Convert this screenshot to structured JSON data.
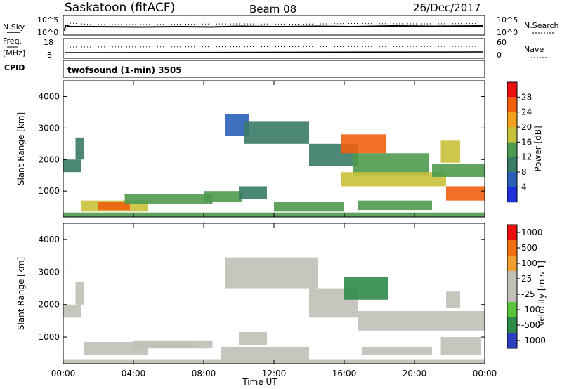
{
  "header": {
    "station": "Saskatoon (fitACF)",
    "beam": "Beam 08",
    "date": "26/Dec/2017"
  },
  "noise_panel": {
    "left_label": "N.Sky",
    "right_label": "N.Search",
    "tick_top": "10^5",
    "tick_bottom": "10^0"
  },
  "freq_panel": {
    "left_label_1": "Freq.",
    "left_label_2": "[MHz]",
    "left_ticks": [
      "18",
      "8"
    ],
    "right_label": "Nave",
    "right_ticks": [
      "60",
      "0"
    ]
  },
  "cpid_panel": {
    "label": "CPID",
    "program": "twofsound (1-min) 3505"
  },
  "colors": {
    "power_scale": [
      "#1f2fd9",
      "#2a5fb8",
      "#3a7a66",
      "#4f9a4f",
      "#c9c03a",
      "#f0a020",
      "#f06010",
      "#e81010"
    ],
    "velocity_scale": [
      "#2b3fc0",
      "#2f8a4a",
      "#5cc43c",
      "#c0c0b8",
      "#c0c0b8",
      "#f0a030",
      "#f07010",
      "#e81010"
    ]
  },
  "chart_data": [
    {
      "type": "heatmap",
      "title": "",
      "xlabel": "",
      "ylabel": "Slant Range [km]",
      "x_ticks": [
        "00:00",
        "04:00",
        "08:00",
        "12:00",
        "16:00",
        "20:00",
        "00:00"
      ],
      "y_ticks": [
        "1000",
        "2000",
        "3000",
        "4000"
      ],
      "ylim": [
        180,
        4500
      ],
      "colorbar": {
        "label": "Power [dB]",
        "ticks": [
          "28",
          "24",
          "20",
          "16",
          "12",
          "8",
          "4"
        ],
        "range": [
          0,
          32
        ]
      },
      "patches": [
        {
          "t0": 0.0,
          "t1": 1.0,
          "r0": 1600,
          "r1": 2000,
          "v": 10
        },
        {
          "t0": 0.7,
          "t1": 1.2,
          "r0": 2000,
          "r1": 2700,
          "v": 8
        },
        {
          "t0": 1.0,
          "t1": 4.8,
          "r0": 350,
          "r1": 700,
          "v": 18
        },
        {
          "t0": 2.0,
          "t1": 3.8,
          "r0": 400,
          "r1": 650,
          "v": 26
        },
        {
          "t0": 3.5,
          "t1": 8.5,
          "r0": 600,
          "r1": 900,
          "v": 12
        },
        {
          "t0": 8.0,
          "t1": 10.2,
          "r0": 650,
          "r1": 1000,
          "v": 14
        },
        {
          "t0": 9.2,
          "t1": 10.6,
          "r0": 2750,
          "r1": 3450,
          "v": 6
        },
        {
          "t0": 10.3,
          "t1": 14.0,
          "r0": 2500,
          "r1": 3200,
          "v": 9
        },
        {
          "t0": 10.0,
          "t1": 11.6,
          "r0": 750,
          "r1": 1150,
          "v": 10
        },
        {
          "t0": 12.0,
          "t1": 16.0,
          "r0": 350,
          "r1": 650,
          "v": 14
        },
        {
          "t0": 14.0,
          "t1": 16.8,
          "r0": 1800,
          "r1": 2500,
          "v": 9
        },
        {
          "t0": 15.8,
          "t1": 18.4,
          "r0": 2200,
          "r1": 2800,
          "v": 26
        },
        {
          "t0": 16.5,
          "t1": 20.8,
          "r0": 1500,
          "r1": 2200,
          "v": 14
        },
        {
          "t0": 15.8,
          "t1": 21.8,
          "r0": 1150,
          "r1": 1600,
          "v": 18
        },
        {
          "t0": 16.8,
          "t1": 21.0,
          "r0": 400,
          "r1": 700,
          "v": 12
        },
        {
          "t0": 21.5,
          "t1": 22.6,
          "r0": 1900,
          "r1": 2600,
          "v": 16
        },
        {
          "t0": 21.8,
          "t1": 24.0,
          "r0": 700,
          "r1": 1150,
          "v": 27
        },
        {
          "t0": 21.0,
          "t1": 24.0,
          "r0": 1450,
          "r1": 1850,
          "v": 12
        },
        {
          "t0": 0.0,
          "t1": 24.0,
          "r0": 180,
          "r1": 320,
          "v": 14
        }
      ]
    },
    {
      "type": "heatmap",
      "title": "",
      "xlabel": "Time UT",
      "ylabel": "Slant Range [km]",
      "x_ticks": [
        "00:00",
        "04:00",
        "08:00",
        "12:00",
        "16:00",
        "20:00",
        "00:00"
      ],
      "y_ticks": [
        "1000",
        "2000",
        "3000",
        "4000"
      ],
      "ylim": [
        180,
        4500
      ],
      "colorbar": {
        "label": "Velocity [m s-1]",
        "ticks": [
          "1000",
          "500",
          "100",
          "25",
          "-25",
          "-100",
          "-500",
          "-1000"
        ],
        "range": [
          -1200,
          1200
        ]
      },
      "patches": [
        {
          "t0": 0.0,
          "t1": 1.0,
          "r0": 1600,
          "r1": 2000,
          "v": 0
        },
        {
          "t0": 0.7,
          "t1": 1.2,
          "r0": 2000,
          "r1": 2700,
          "v": 0
        },
        {
          "t0": 1.2,
          "t1": 4.8,
          "r0": 450,
          "r1": 850,
          "v": 120
        },
        {
          "t0": 4.0,
          "t1": 8.5,
          "r0": 650,
          "r1": 900,
          "v": 0
        },
        {
          "t0": 5.0,
          "t1": 7.5,
          "r0": 700,
          "r1": 850,
          "v": 150
        },
        {
          "t0": 9.2,
          "t1": 14.5,
          "r0": 2500,
          "r1": 3450,
          "v": 0
        },
        {
          "t0": 10.0,
          "t1": 11.6,
          "r0": 750,
          "r1": 1150,
          "v": 0
        },
        {
          "t0": 9.0,
          "t1": 14.0,
          "r0": 300,
          "r1": 700,
          "v": -120
        },
        {
          "t0": 14.0,
          "t1": 16.8,
          "r0": 1600,
          "r1": 2500,
          "v": 0
        },
        {
          "t0": 16.0,
          "t1": 18.5,
          "r0": 2150,
          "r1": 2850,
          "v": -700
        },
        {
          "t0": 16.8,
          "t1": 24.0,
          "r0": 1200,
          "r1": 1800,
          "v": 0
        },
        {
          "t0": 17.0,
          "t1": 21.0,
          "r0": 450,
          "r1": 700,
          "v": -120
        },
        {
          "t0": 21.5,
          "t1": 23.8,
          "r0": 450,
          "r1": 1000,
          "v": 130
        },
        {
          "t0": 21.8,
          "t1": 22.6,
          "r0": 1900,
          "r1": 2400,
          "v": -200
        },
        {
          "t0": 0.0,
          "t1": 24.0,
          "r0": 180,
          "r1": 320,
          "v": -120
        }
      ]
    }
  ]
}
